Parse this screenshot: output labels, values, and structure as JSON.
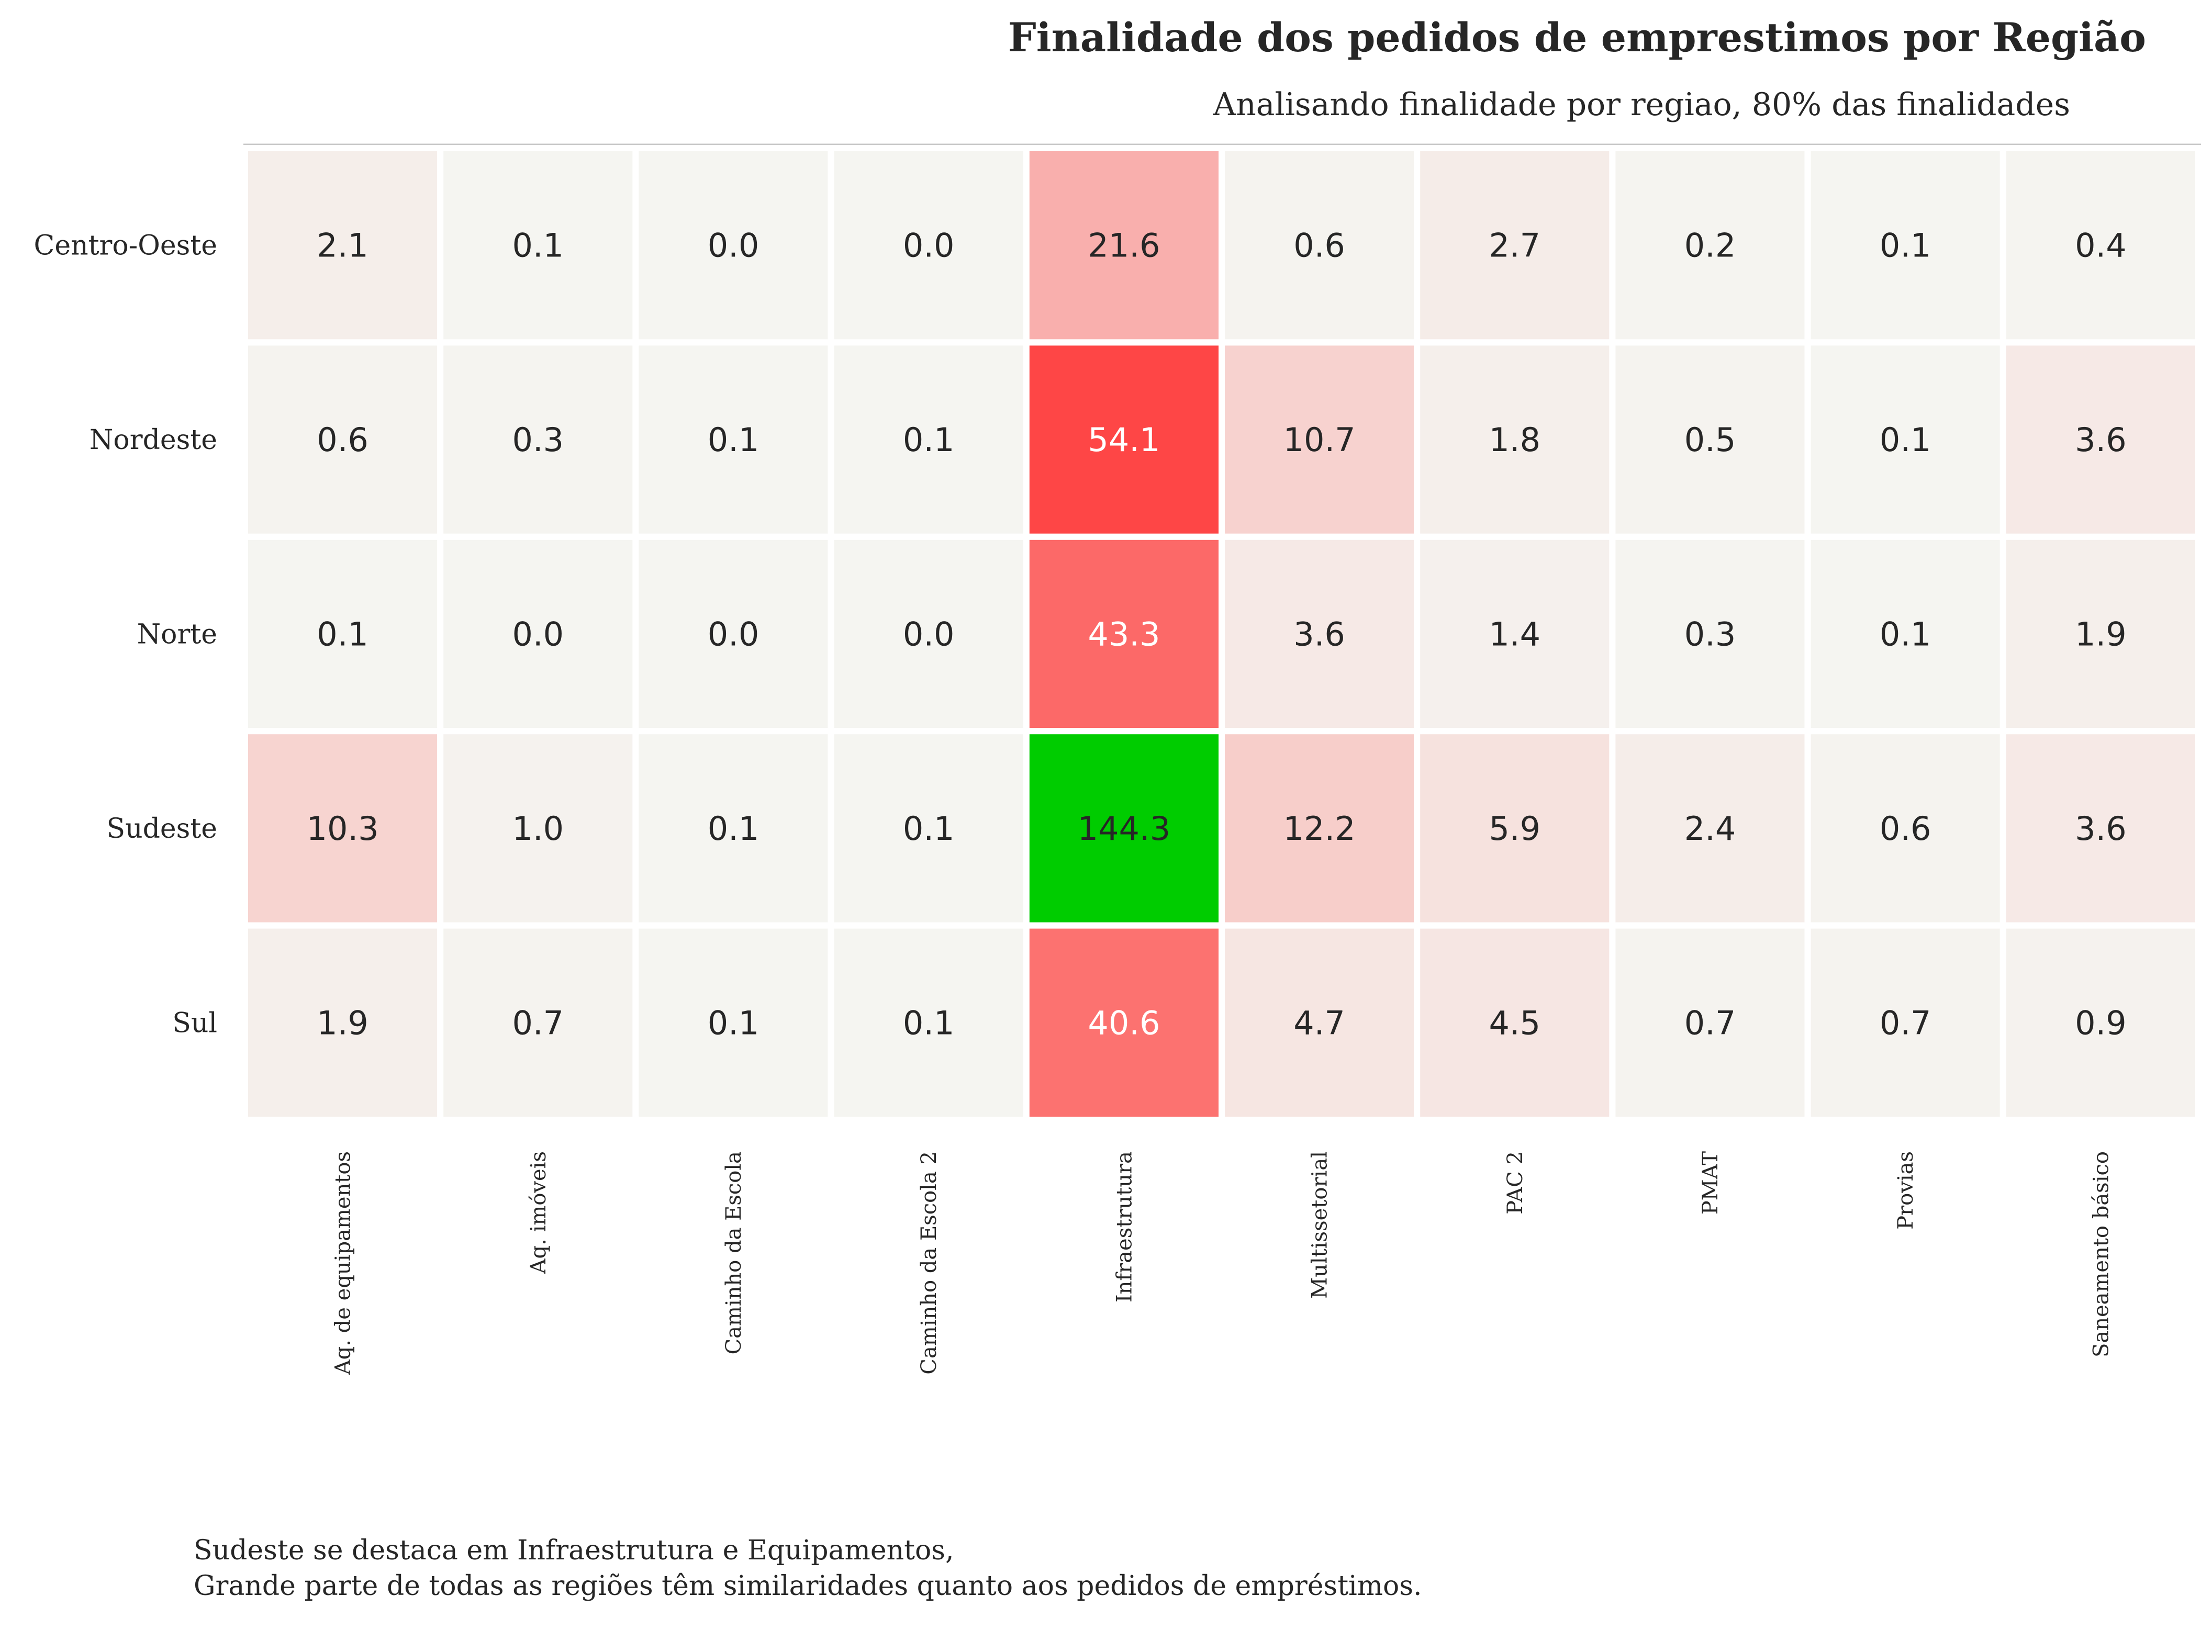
{
  "chart_data": {
    "type": "heatmap",
    "title": "Finalidade dos pedidos de emprestimos por Região",
    "subtitle": "Analisando finalidade por regiao, 80% das finalidades",
    "rows": [
      "Centro-Oeste",
      "Nordeste",
      "Norte",
      "Sudeste",
      "Sul"
    ],
    "columns": [
      "Aq. de equipamentos",
      "Aq. imóveis",
      "Caminho da Escola",
      "Caminho da Escola 2",
      "Infraestrutura",
      "Multissetorial",
      "PAC 2",
      "PMAT",
      "Provias",
      "Saneamento básico"
    ],
    "values": [
      [
        2.1,
        0.1,
        0.0,
        0.0,
        21.6,
        0.6,
        2.7,
        0.2,
        0.1,
        0.4
      ],
      [
        0.6,
        0.3,
        0.1,
        0.1,
        54.1,
        10.7,
        1.8,
        0.5,
        0.1,
        3.6
      ],
      [
        0.1,
        0.0,
        0.0,
        0.0,
        43.3,
        3.6,
        1.4,
        0.3,
        0.1,
        1.9
      ],
      [
        10.3,
        1.0,
        0.1,
        0.1,
        144.3,
        12.2,
        5.9,
        2.4,
        0.6,
        3.6
      ],
      [
        1.9,
        0.7,
        0.1,
        0.1,
        40.6,
        4.7,
        4.5,
        0.7,
        0.7,
        0.9
      ]
    ],
    "value_format": "0.0",
    "colors": {
      "low": "#f5f5f1",
      "high": "#ff3333",
      "max_cell": "#00cc00",
      "cell_border": "#ffffff",
      "text_dark": "#262626",
      "text_light": "#ffffff",
      "rule": "#c8c8c8"
    },
    "color_scale_max": 60,
    "grid": false,
    "legend": "none"
  },
  "footnote": {
    "line1": "Sudeste se destaca em Infraestrutura e Equipamentos,",
    "line2": "Grande parte de todas as regiões têm similaridades quanto aos pedidos de empréstimos."
  }
}
